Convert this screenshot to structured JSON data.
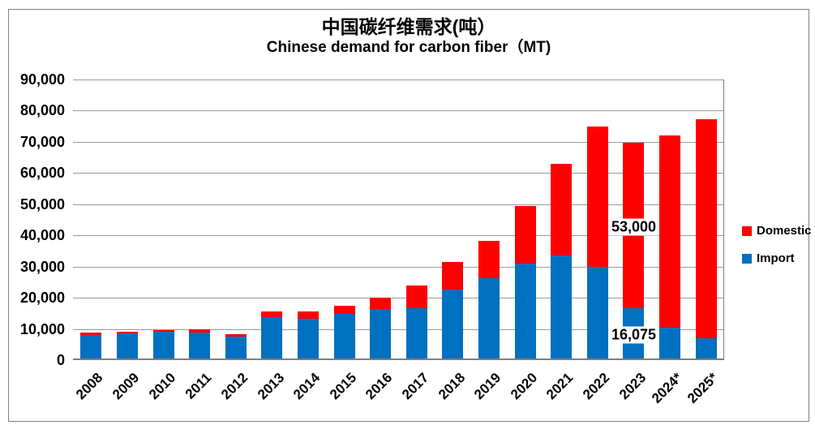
{
  "title": {
    "line1": "中国碳纤维需求(吨）",
    "line2": "Chinese demand for carbon fiber（MT)"
  },
  "legend": {
    "items": [
      {
        "label": "Domestic",
        "color": "#FF0000"
      },
      {
        "label": "Import",
        "color": "#0070C0"
      }
    ]
  },
  "y_axis": {
    "ticks": [
      "90,000",
      "80,000",
      "70,000",
      "60,000",
      "50,000",
      "40,000",
      "30,000",
      "20,000",
      "10,000",
      "0"
    ]
  },
  "chart_data": {
    "type": "bar",
    "stacked": true,
    "title": "中国碳纤维需求(吨） / Chinese demand for carbon fiber（MT)",
    "xlabel": "",
    "ylabel": "",
    "ylim": [
      0,
      90000
    ],
    "y_step": 10000,
    "grid": true,
    "legend_position": "right",
    "categories": [
      "2008",
      "2009",
      "2010",
      "2011",
      "2012",
      "2013",
      "2014",
      "2015",
      "2016",
      "2017",
      "2018",
      "2019",
      "2020",
      "2021",
      "2022",
      "2023",
      "2024*",
      "2025*"
    ],
    "series": [
      {
        "name": "Import",
        "color": "#0070C0",
        "values": [
          7600,
          8000,
          8500,
          8200,
          7100,
          13300,
          12800,
          14300,
          16000,
          16100,
          22000,
          25850,
          30400,
          33100,
          29400,
          16075,
          10000,
          6500
        ]
      },
      {
        "name": "Domestic",
        "color": "#FF0000",
        "values": [
          800,
          700,
          600,
          1100,
          700,
          1700,
          2200,
          2500,
          3600,
          7400,
          9000,
          12000,
          18450,
          29250,
          45100,
          53000,
          61500,
          70300
        ]
      }
    ],
    "annotations": [
      {
        "category": "2023",
        "series": "Domestic",
        "text": "53,000"
      },
      {
        "category": "2023",
        "series": "Import",
        "text": "16,075"
      }
    ]
  },
  "colors": {
    "bar_blue": "#0070C0",
    "bar_red": "#FF0000",
    "gridline": "#9A9A9A",
    "axis": "#808080",
    "frame_border": "#808080",
    "text": "#000000",
    "background": "#FFFFFF"
  }
}
